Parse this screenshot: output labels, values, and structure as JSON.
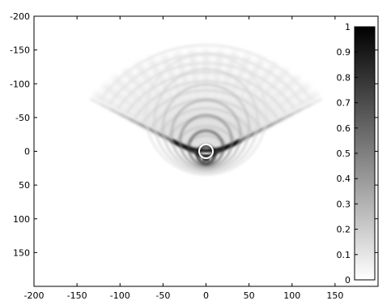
{
  "chart_data": {
    "type": "heatmap",
    "title": "",
    "xlabel": "",
    "ylabel": "",
    "xlim": [
      -200,
      200
    ],
    "ylim": [
      -200,
      200
    ],
    "y_reversed": true,
    "x_ticks": [
      -200,
      -150,
      -100,
      -50,
      0,
      50,
      100,
      150
    ],
    "y_ticks": [
      -200,
      -150,
      -100,
      -50,
      0,
      50,
      100,
      150
    ],
    "grid": false,
    "colormap": "gray-reversed",
    "colorbar": {
      "range": [
        0,
        1
      ],
      "ticks": [
        0,
        0.1,
        0.2,
        0.3,
        0.4,
        0.5,
        0.6,
        0.7,
        0.8,
        0.9,
        1
      ],
      "placement": "inside-right"
    },
    "features": {
      "apex": [
        0,
        10
      ],
      "wedge_half_angle_deg": 57,
      "wedge_reach": 160,
      "rings": [
        {
          "cx": 0,
          "cy": 10,
          "r": 3,
          "value": 0.9
        },
        {
          "cx": 0,
          "cy": 5,
          "r": 10,
          "value": 0.95
        },
        {
          "cx": 0,
          "cy": -5,
          "r": 20,
          "value": 0.75
        },
        {
          "cx": 0,
          "cy": -15,
          "r": 30,
          "value": 0.5
        },
        {
          "cx": 0,
          "cy": -25,
          "r": 40,
          "value": 0.35
        },
        {
          "cx": 0,
          "cy": -35,
          "r": 50,
          "value": 0.25
        },
        {
          "cx": 0,
          "cy": -45,
          "r": 60,
          "value": 0.18
        },
        {
          "cx": 0,
          "cy": -55,
          "r": 70,
          "value": 0.12
        }
      ]
    }
  }
}
